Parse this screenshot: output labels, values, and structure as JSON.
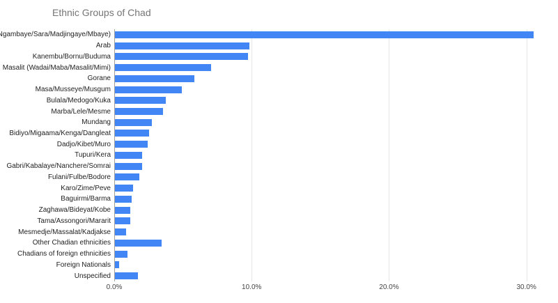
{
  "chart_data": {
    "type": "bar",
    "orientation": "horizontal",
    "title": "Ethnic Groups of Chad",
    "xlabel": "",
    "ylabel": "",
    "categories": [
      "Sara (Ngambaye/Sara/Madjingaye/Mbaye)",
      "Arab",
      "Kanembu/Bornu/Buduma",
      "Masalit (Wadai/Maba/Masalit/Mimi)",
      "Gorane",
      "Masa/Musseye/Musgum",
      "Bulala/Medogo/Kuka",
      "Marba/Lele/Mesme",
      "Mundang",
      "Bidiyo/Migaama/Kenga/Dangleat",
      "Dadjo/Kibet/Muro",
      "Tupuri/Kera",
      "Gabri/Kabalaye/Nanchere/Somrai",
      "Fulani/Fulbe/Bodore",
      "Karo/Zime/Peve",
      "Baguirmi/Barma",
      "Zaghawa/Bideyat/Kobe",
      "Tama/Assongori/Mararit",
      "Mesmedje/Massalat/Kadjakse",
      "Other Chadian ethnicities",
      "Chadians of foreign ethnicities",
      "Foreign Nationals",
      "Unspecified"
    ],
    "values": [
      30.5,
      9.8,
      9.7,
      7.0,
      5.8,
      4.9,
      3.7,
      3.5,
      2.7,
      2.5,
      2.4,
      2.0,
      2.0,
      1.8,
      1.3,
      1.2,
      1.1,
      1.1,
      0.8,
      3.4,
      0.9,
      0.3,
      1.7
    ],
    "value_unit": "%",
    "xlim": [
      0,
      31.74
    ],
    "x_tick_values": [
      0,
      10,
      20,
      30
    ],
    "x_tick_labels": [
      "0.0%",
      "10.0%",
      "20.0%",
      "30.0%"
    ],
    "grid": true,
    "legend_position": "none",
    "colors": {
      "bar": "#4285f4",
      "title": "#757575",
      "category_label": "#222222",
      "axis_label": "#444444",
      "gridline": "#e6e6e6",
      "axis_line": "#9e9e9e",
      "background": "#ffffff"
    }
  }
}
